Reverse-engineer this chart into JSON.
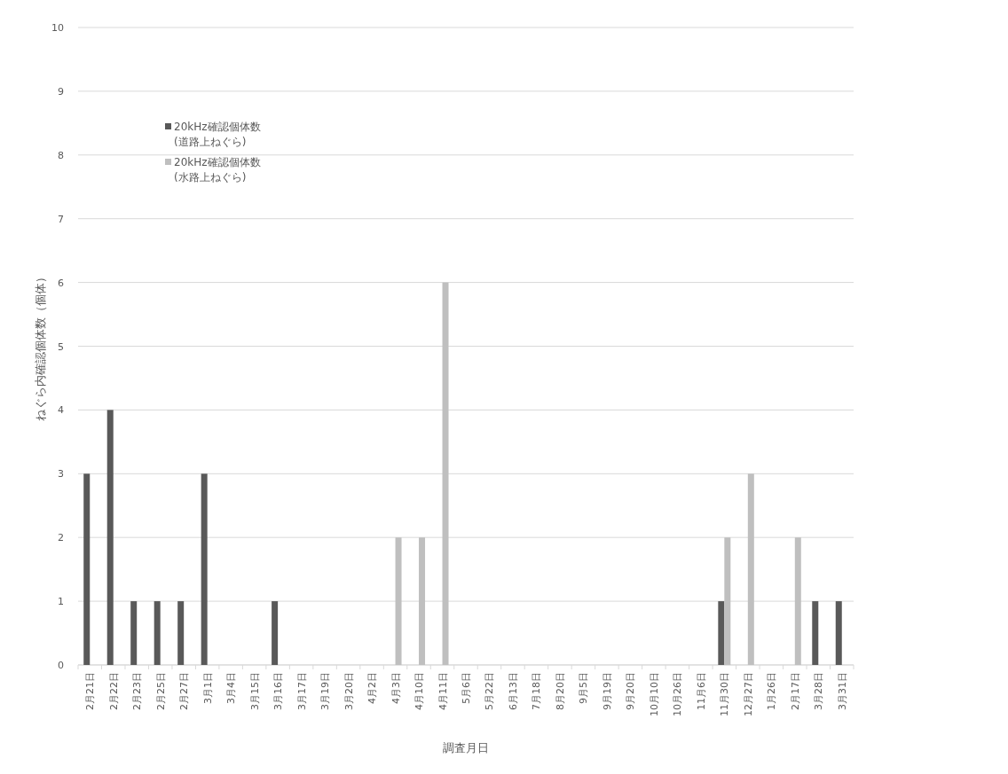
{
  "chart_data": {
    "type": "bar",
    "xlabel": "調査月日",
    "ylabel": "ねぐら内確認個体数（個体）",
    "categories": [
      "2月21日",
      "2月22日",
      "2月23日",
      "2月25日",
      "2月27日",
      "3月1日",
      "3月4日",
      "3月15日",
      "3月16日",
      "3月17日",
      "3月19日",
      "3月20日",
      "4月2日",
      "4月3日",
      "4月10日",
      "4月11日",
      "5月6日",
      "5月22日",
      "6月13日",
      "7月18日",
      "8月20日",
      "9月5日",
      "9月19日",
      "9月20日",
      "10月10日",
      "10月26日",
      "11月6日",
      "11月30日",
      "12月27日",
      "1月26日",
      "2月17日",
      "3月28日",
      "3月31日"
    ],
    "series": [
      {
        "name": "20kHz確認個体数\n(道路上ねぐら)",
        "color": "#595959",
        "values": [
          3,
          4,
          1,
          1,
          1,
          3,
          0,
          0,
          1,
          0,
          0,
          0,
          0,
          0,
          0,
          0,
          0,
          0,
          0,
          0,
          0,
          0,
          0,
          0,
          0,
          0,
          0,
          1,
          0,
          0,
          0,
          1,
          1
        ]
      },
      {
        "name": "20kHz確認個体数\n(水路上ねぐら)",
        "color": "#bfbfbf",
        "values": [
          0,
          0,
          0,
          0,
          0,
          0,
          0,
          0,
          0,
          0,
          0,
          0,
          0,
          2,
          2,
          6,
          0,
          0,
          0,
          0,
          0,
          0,
          0,
          0,
          0,
          0,
          0,
          2,
          3,
          0,
          2,
          0,
          0
        ]
      }
    ],
    "ylim": [
      0,
      10
    ],
    "yticks": [
      0,
      1,
      2,
      3,
      4,
      5,
      6,
      7,
      8,
      9,
      10
    ],
    "grid": "y",
    "legend": "top left"
  }
}
